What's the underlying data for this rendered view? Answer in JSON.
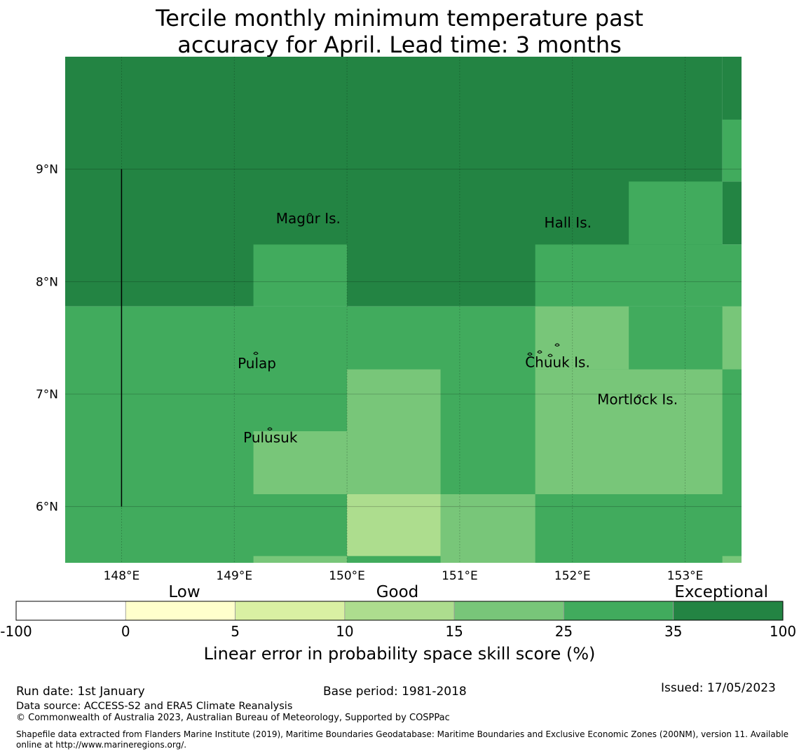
{
  "title": {
    "line1": "Tercile monthly minimum temperature past",
    "line2": "accuracy for April. Lead time: 3 months"
  },
  "map": {
    "lon_range": [
      147.5,
      153.5
    ],
    "lat_range": [
      5.5,
      10.0
    ],
    "lon_ticks": [
      148,
      149,
      150,
      151,
      152,
      153
    ],
    "lat_ticks": [
      6,
      7,
      8,
      9
    ],
    "lon_tick_labels": [
      "148°E",
      "149°E",
      "150°E",
      "151°E",
      "152°E",
      "153°E"
    ],
    "lat_tick_labels": [
      "6°N",
      "7°N",
      "8°N",
      "9°N"
    ],
    "cells": [
      {
        "lon": [
          147.5,
          153.33
        ],
        "lat": [
          7.78,
          10.0
        ],
        "class": 6
      },
      {
        "lon": [
          153.33,
          153.5
        ],
        "lat": [
          9.44,
          10.0
        ],
        "class": 6
      },
      {
        "lon": [
          153.33,
          153.5
        ],
        "lat": [
          8.89,
          9.44
        ],
        "class": 5
      },
      {
        "lon": [
          153.33,
          153.5
        ],
        "lat": [
          8.33,
          8.89
        ],
        "class": 6
      },
      {
        "lon": [
          152.5,
          153.33
        ],
        "lat": [
          8.33,
          8.89
        ],
        "class": 5
      },
      {
        "lon": [
          151.67,
          153.5
        ],
        "lat": [
          7.78,
          8.33
        ],
        "class": 5
      },
      {
        "lon": [
          149.17,
          150.0
        ],
        "lat": [
          7.78,
          8.33
        ],
        "class": 5
      },
      {
        "lon": [
          147.5,
          153.5
        ],
        "lat": [
          5.5,
          7.78
        ],
        "class": 5
      },
      {
        "lon": [
          150.0,
          150.83
        ],
        "lat": [
          6.11,
          7.22
        ],
        "class": 4
      },
      {
        "lon": [
          149.17,
          150.0
        ],
        "lat": [
          6.11,
          6.67
        ],
        "class": 4
      },
      {
        "lon": [
          151.67,
          152.5
        ],
        "lat": [
          7.22,
          7.78
        ],
        "class": 4
      },
      {
        "lon": [
          151.67,
          153.33
        ],
        "lat": [
          6.11,
          7.22
        ],
        "class": 4
      },
      {
        "lon": [
          153.33,
          153.5
        ],
        "lat": [
          7.22,
          7.78
        ],
        "class": 4
      },
      {
        "lon": [
          150.83,
          151.67
        ],
        "lat": [
          5.5,
          6.11
        ],
        "class": 4
      },
      {
        "lon": [
          150.0,
          150.83
        ],
        "lat": [
          5.56,
          6.11
        ],
        "class": 3
      },
      {
        "lon": [
          149.17,
          150.0
        ],
        "lat": [
          5.5,
          5.56
        ],
        "class": 4
      },
      {
        "lon": [
          153.33,
          153.5
        ],
        "lat": [
          5.5,
          5.56
        ],
        "class": 4
      }
    ],
    "places": [
      {
        "name": "Magur Is.",
        "lon": 149.37,
        "lat": 8.52
      },
      {
        "name": "Hall Is.",
        "lon": 151.75,
        "lat": 8.48
      },
      {
        "name": "Pulap",
        "lon": 149.03,
        "lat": 7.23
      },
      {
        "name": "Chuuk Is.",
        "lon": 151.58,
        "lat": 7.24
      },
      {
        "name": "Mortlock Is.",
        "lon": 152.22,
        "lat": 6.91
      },
      {
        "name": "Pulusuk",
        "lon": 149.08,
        "lat": 6.57
      }
    ],
    "boundary_line": {
      "lon": 148.0,
      "lat": [
        6.0,
        9.0
      ]
    }
  },
  "legend": {
    "categories": [
      "Low",
      "Good",
      "Exceptional"
    ],
    "tick_labels": [
      "-100",
      "0",
      "5",
      "10",
      "15",
      "25",
      "35",
      "100"
    ],
    "colors": [
      "#ffffff",
      "#ffffcc",
      "#d9f0a3",
      "#addd8e",
      "#78c679",
      "#41ab5d",
      "#238443"
    ],
    "title": "Linear error in probability space skill score (%)"
  },
  "footer": {
    "run_date": "Run date: 1st January",
    "base_period": "Base period: 1981-2018",
    "issued": "Issued: 17/05/2023",
    "data_source": "Data source: ACCESS-S2 and ERA5 Climate Reanalysis",
    "copyright": "© Commonwealth of Australia 2023, Australian Bureau of Meteorology, Supported by COSPPac",
    "shapefile": "Shapefile data extracted from Flanders Marine Institute (2019), Maritime Boundaries Geodatabase: Maritime Boundaries and Exclusive Economic Zones (200NM), version 11. Available online at http://www.marineregions.org/."
  }
}
